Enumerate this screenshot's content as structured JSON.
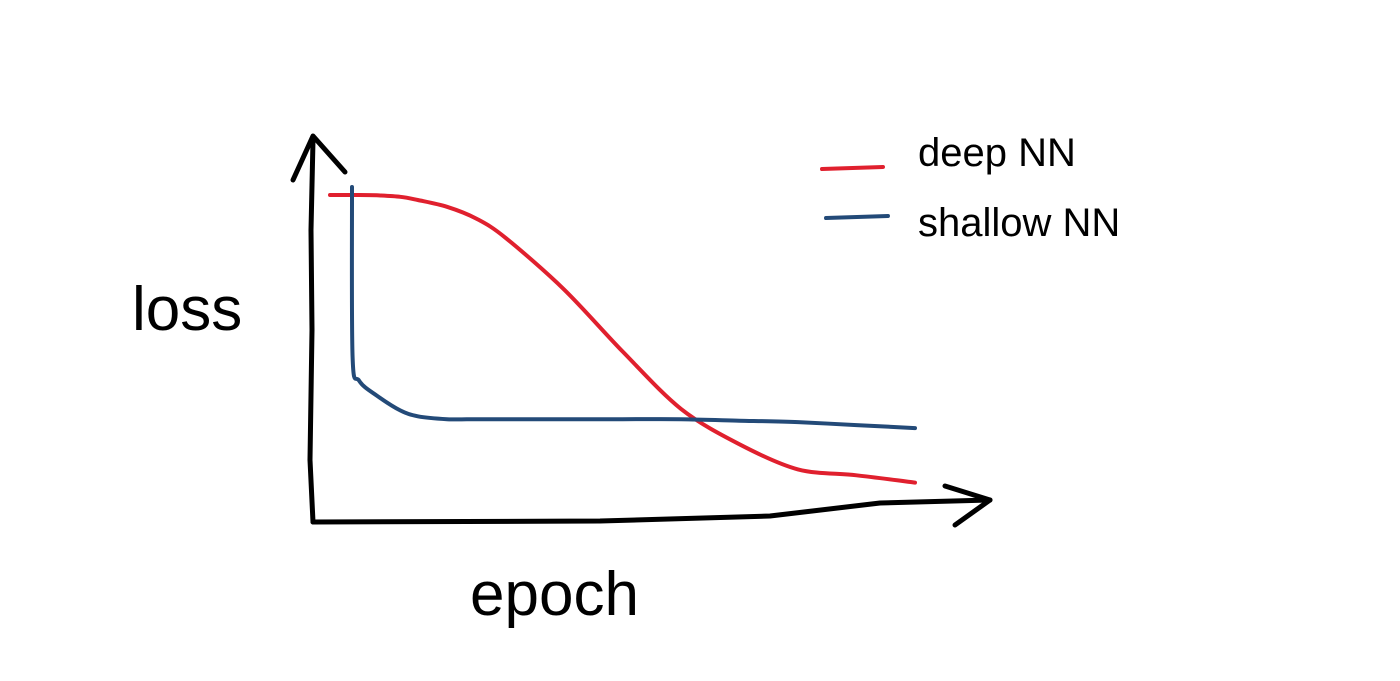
{
  "chart_data": {
    "type": "line",
    "title": "",
    "xlabel": "epoch",
    "ylabel": "loss",
    "xlim": [
      0,
      100
    ],
    "ylim": [
      0,
      100
    ],
    "grid": false,
    "legend_position": "top-right",
    "x": [
      0,
      3,
      5,
      8,
      12,
      15,
      20,
      25,
      30,
      40,
      50,
      60,
      70,
      80,
      90,
      100
    ],
    "series": [
      {
        "name": "deep NN",
        "color": "#e0202e",
        "values": [
          100,
          100,
          100,
          99.9,
          99.4,
          98.3,
          96,
          92,
          85.5,
          68,
          47,
          27.5,
          15.5,
          7,
          5,
          2.5
        ]
      },
      {
        "name": "shallow NN",
        "color": "#234a78",
        "values": [
          100,
          45,
          37,
          32,
          27,
          25,
          24,
          24,
          24,
          24,
          24,
          24,
          23.5,
          23,
          22,
          21
        ]
      }
    ],
    "legend_line_color_deep": "#e0202e",
    "legend_line_color_shallow": "#234a78",
    "axis_color": "#000000"
  }
}
